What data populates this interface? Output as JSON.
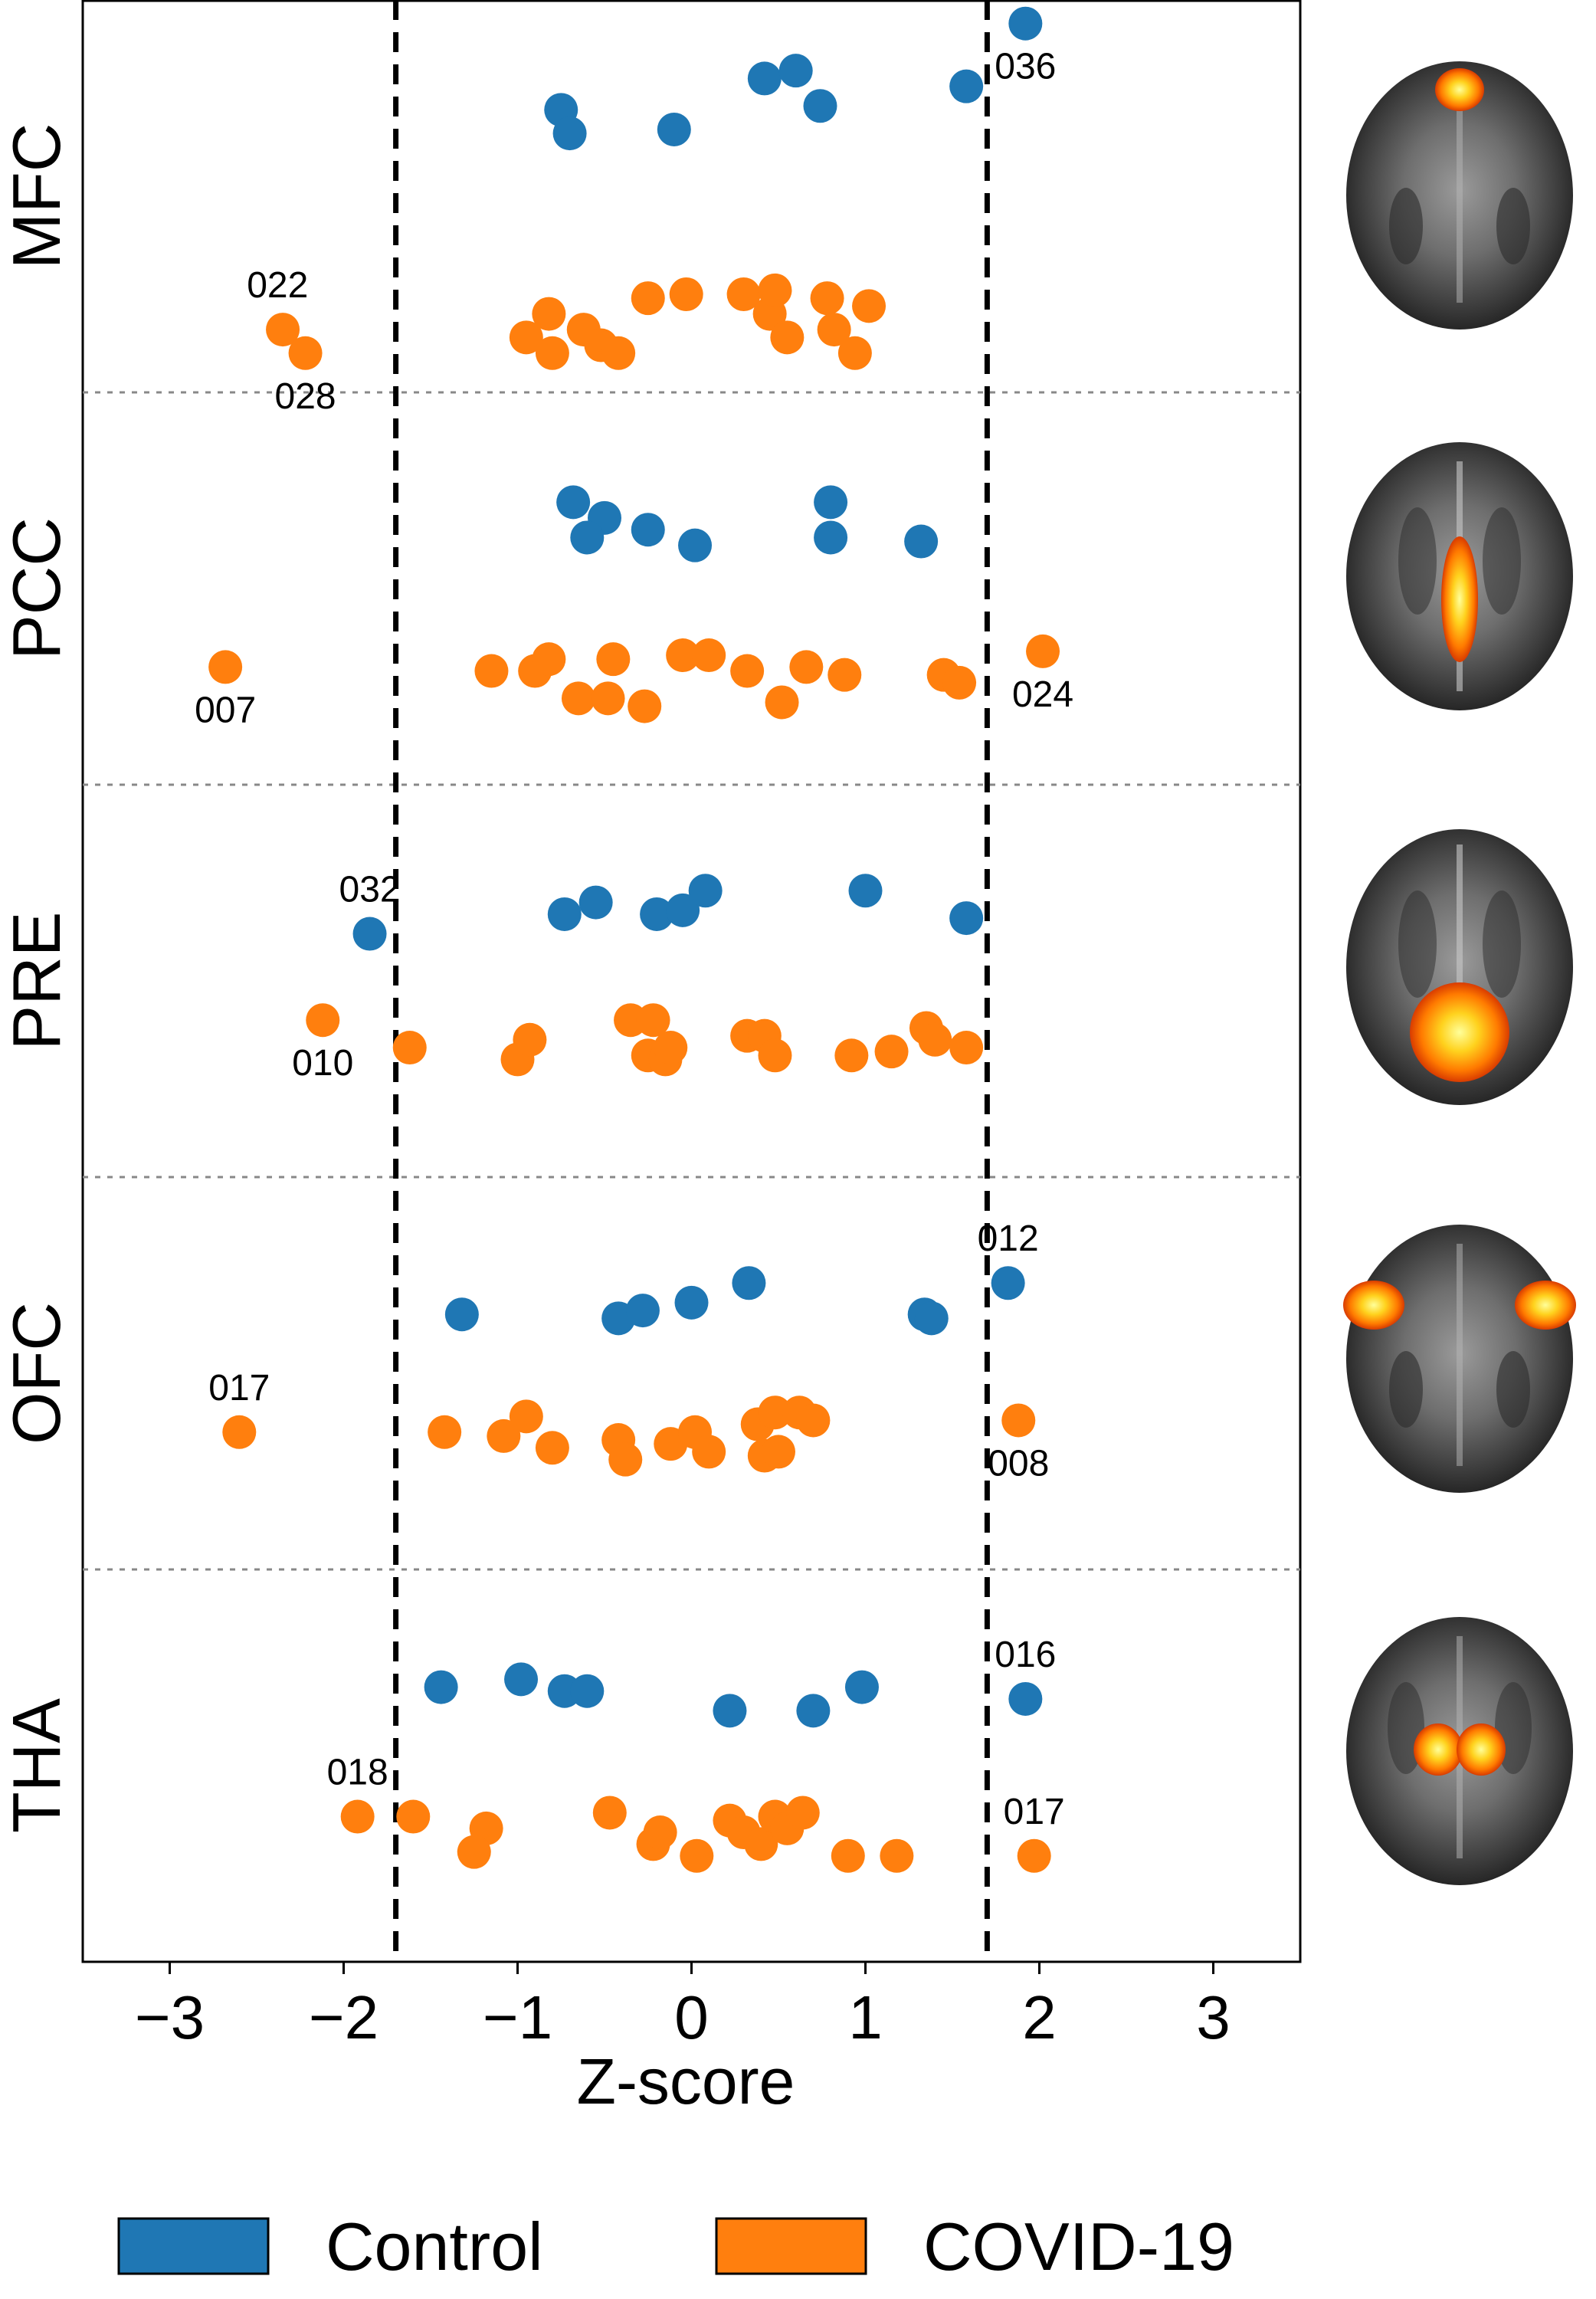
{
  "chart_data": {
    "type": "scatter",
    "xlabel": "Z-score",
    "xlim": [
      -3.5,
      3.5
    ],
    "xticks": [
      -3,
      -2,
      -1,
      0,
      1,
      2,
      3
    ],
    "xtick_labels": [
      "−3",
      "−2",
      "−1",
      "0",
      "1",
      "2",
      "3"
    ],
    "threshold_lines": [
      -1.7,
      1.7
    ],
    "grid": false,
    "legend_placement": "bottom",
    "legend": [
      {
        "name": "Control",
        "color": "#1f77b4"
      },
      {
        "name": "COVID-19",
        "color": "#ff7f0e"
      }
    ],
    "regions": [
      {
        "name": "MFC",
        "control": [
          [
            -0.75,
            0.28
          ],
          [
            -0.7,
            0.34
          ],
          [
            -0.1,
            0.33
          ],
          [
            0.42,
            0.2
          ],
          [
            0.6,
            0.18
          ],
          [
            0.74,
            0.27
          ],
          [
            1.58,
            0.22
          ],
          [
            1.92,
            0.06
          ]
        ],
        "covid": [
          [
            -2.35,
            0.84
          ],
          [
            -2.22,
            0.9
          ],
          [
            -0.95,
            0.86
          ],
          [
            -0.82,
            0.8
          ],
          [
            -0.8,
            0.9
          ],
          [
            -0.62,
            0.84
          ],
          [
            -0.52,
            0.88
          ],
          [
            -0.42,
            0.9
          ],
          [
            -0.25,
            0.76
          ],
          [
            -0.03,
            0.75
          ],
          [
            0.3,
            0.75
          ],
          [
            0.45,
            0.8
          ],
          [
            0.48,
            0.74
          ],
          [
            0.55,
            0.86
          ],
          [
            0.78,
            0.76
          ],
          [
            0.82,
            0.84
          ],
          [
            0.94,
            0.9
          ],
          [
            1.02,
            0.78
          ]
        ],
        "annotations": [
          {
            "label": "022",
            "x": -2.38,
            "group": "covid"
          },
          {
            "label": "028",
            "x": -2.22,
            "group": "covid"
          },
          {
            "label": "036",
            "x": 1.92,
            "group": "control"
          }
        ]
      },
      {
        "name": "PCC",
        "control": [
          [
            -0.68,
            0.28
          ],
          [
            -0.5,
            0.32
          ],
          [
            -0.6,
            0.37
          ],
          [
            -0.25,
            0.35
          ],
          [
            0.02,
            0.39
          ],
          [
            0.8,
            0.28
          ],
          [
            0.8,
            0.37
          ],
          [
            1.32,
            0.38
          ]
        ],
        "covid": [
          [
            -2.68,
            0.7
          ],
          [
            -1.15,
            0.71
          ],
          [
            -0.9,
            0.71
          ],
          [
            -0.82,
            0.68
          ],
          [
            -0.65,
            0.78
          ],
          [
            -0.48,
            0.78
          ],
          [
            -0.45,
            0.68
          ],
          [
            -0.27,
            0.8
          ],
          [
            -0.05,
            0.67
          ],
          [
            0.1,
            0.67
          ],
          [
            0.32,
            0.71
          ],
          [
            0.52,
            0.79
          ],
          [
            0.66,
            0.7
          ],
          [
            0.88,
            0.72
          ],
          [
            1.45,
            0.72
          ],
          [
            1.54,
            0.74
          ],
          [
            2.02,
            0.66
          ]
        ],
        "annotations": [
          {
            "label": "007",
            "x": -2.68,
            "group": "covid"
          },
          {
            "label": "024",
            "x": 2.02,
            "group": "covid"
          }
        ]
      },
      {
        "name": "PRE",
        "control": [
          [
            -1.85,
            0.38
          ],
          [
            -0.73,
            0.33
          ],
          [
            -0.55,
            0.3
          ],
          [
            -0.2,
            0.33
          ],
          [
            -0.05,
            0.32
          ],
          [
            0.08,
            0.27
          ],
          [
            1.0,
            0.27
          ],
          [
            1.58,
            0.34
          ]
        ],
        "covid": [
          [
            -2.12,
            0.6
          ],
          [
            -1.62,
            0.67
          ],
          [
            -1.0,
            0.7
          ],
          [
            -0.93,
            0.65
          ],
          [
            -0.35,
            0.6
          ],
          [
            -0.22,
            0.6
          ],
          [
            -0.25,
            0.69
          ],
          [
            -0.15,
            0.7
          ],
          [
            -0.12,
            0.67
          ],
          [
            0.32,
            0.64
          ],
          [
            0.42,
            0.64
          ],
          [
            0.48,
            0.69
          ],
          [
            0.92,
            0.69
          ],
          [
            1.15,
            0.68
          ],
          [
            1.35,
            0.62
          ],
          [
            1.4,
            0.65
          ],
          [
            1.58,
            0.67
          ]
        ],
        "annotations": [
          {
            "label": "032",
            "x": -1.85,
            "group": "control"
          },
          {
            "label": "010",
            "x": -2.12,
            "group": "covid"
          }
        ]
      },
      {
        "name": "OFC",
        "control": [
          [
            -1.32,
            0.35
          ],
          [
            -0.42,
            0.36
          ],
          [
            -0.28,
            0.34
          ],
          [
            0.0,
            0.32
          ],
          [
            0.33,
            0.27
          ],
          [
            1.34,
            0.35
          ],
          [
            1.38,
            0.36
          ],
          [
            1.82,
            0.27
          ]
        ],
        "covid": [
          [
            -2.6,
            0.65
          ],
          [
            -1.42,
            0.65
          ],
          [
            -1.08,
            0.66
          ],
          [
            -0.95,
            0.61
          ],
          [
            -0.8,
            0.69
          ],
          [
            -0.42,
            0.67
          ],
          [
            -0.38,
            0.72
          ],
          [
            -0.12,
            0.68
          ],
          [
            0.02,
            0.65
          ],
          [
            0.1,
            0.7
          ],
          [
            0.38,
            0.63
          ],
          [
            0.42,
            0.71
          ],
          [
            0.48,
            0.6
          ],
          [
            0.5,
            0.7
          ],
          [
            0.62,
            0.6
          ],
          [
            0.7,
            0.62
          ],
          [
            1.88,
            0.62
          ]
        ],
        "annotations": [
          {
            "label": "012",
            "x": 1.82,
            "group": "control"
          },
          {
            "label": "017",
            "x": -2.6,
            "group": "covid"
          },
          {
            "label": "008",
            "x": 1.88,
            "group": "covid"
          }
        ]
      },
      {
        "name": "THA",
        "control": [
          [
            -1.44,
            0.3
          ],
          [
            -0.98,
            0.28
          ],
          [
            -0.73,
            0.31
          ],
          [
            -0.6,
            0.31
          ],
          [
            0.22,
            0.36
          ],
          [
            0.7,
            0.36
          ],
          [
            0.98,
            0.3
          ],
          [
            1.92,
            0.33
          ]
        ],
        "covid": [
          [
            -1.92,
            0.63
          ],
          [
            -1.6,
            0.63
          ],
          [
            -1.18,
            0.66
          ],
          [
            -1.25,
            0.72
          ],
          [
            -0.47,
            0.62
          ],
          [
            -0.22,
            0.7
          ],
          [
            -0.18,
            0.67
          ],
          [
            0.03,
            0.73
          ],
          [
            0.22,
            0.64
          ],
          [
            0.3,
            0.67
          ],
          [
            0.4,
            0.7
          ],
          [
            0.48,
            0.63
          ],
          [
            0.55,
            0.66
          ],
          [
            0.64,
            0.62
          ],
          [
            0.9,
            0.73
          ],
          [
            1.18,
            0.73
          ],
          [
            1.97,
            0.73
          ]
        ],
        "annotations": [
          {
            "label": "016",
            "x": 1.92,
            "group": "control"
          },
          {
            "label": "018",
            "x": -1.92,
            "group": "covid"
          },
          {
            "label": "017",
            "x": 1.97,
            "group": "covid"
          }
        ]
      }
    ]
  },
  "colors": {
    "control": "#1f77b4",
    "covid": "#ff7f0e",
    "axis": "#000000",
    "separator": "#888888"
  }
}
